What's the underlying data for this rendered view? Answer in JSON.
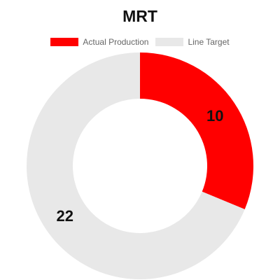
{
  "chart_data": {
    "type": "pie",
    "variant": "doughnut",
    "title": "MRT",
    "legend_position": "top",
    "categories": [
      "Actual Production",
      "Line Target"
    ],
    "values": [
      10,
      22
    ],
    "colors": [
      "#ff0000",
      "#e8e8e8"
    ],
    "data_labels": [
      "10",
      "22"
    ]
  }
}
